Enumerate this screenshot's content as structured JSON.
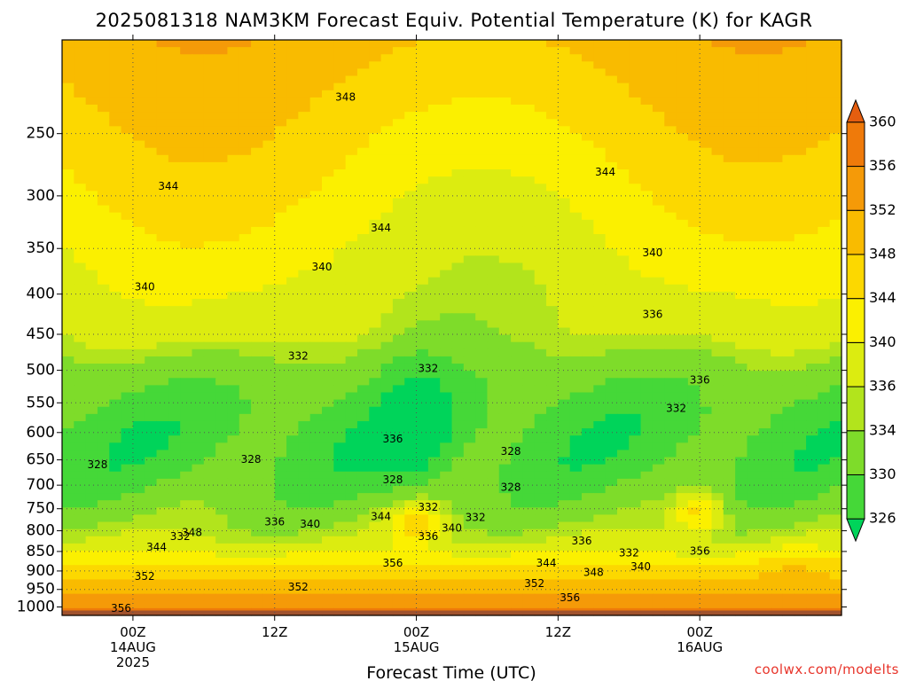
{
  "chart_data": {
    "type": "heatmap",
    "title": "2025081318 NAM3KM Forecast Equiv. Potential Temperature (K) for KAGR",
    "xlabel": "Forecast Time (UTC)",
    "ylabel": "",
    "y_scale": "log",
    "y_reversed": true,
    "ylim": [
      1025,
      190
    ],
    "y_ticks": [
      250,
      300,
      350,
      400,
      450,
      500,
      550,
      600,
      650,
      700,
      750,
      800,
      850,
      900,
      950,
      1000
    ],
    "xlim": [
      "2025-08-13T18",
      "2025-08-16T12"
    ],
    "x_ticks": [
      {
        "time": "2025-08-14T00",
        "lines": [
          "00Z",
          "14AUG",
          "2025"
        ]
      },
      {
        "time": "2025-08-14T12",
        "lines": [
          "12Z"
        ]
      },
      {
        "time": "2025-08-15T00",
        "lines": [
          "00Z",
          "15AUG"
        ]
      },
      {
        "time": "2025-08-15T12",
        "lines": [
          "12Z"
        ]
      },
      {
        "time": "2025-08-16T00",
        "lines": [
          "00Z",
          "16AUG"
        ]
      }
    ],
    "grid": true,
    "colorbar": {
      "units": "K",
      "levels": [
        326,
        330,
        334,
        336,
        340,
        344,
        348,
        352,
        356,
        360
      ],
      "colors": [
        "#00d45a",
        "#45d838",
        "#7edc2a",
        "#b2e41c",
        "#dcec10",
        "#fbf000",
        "#fcd800",
        "#f9bb00",
        "#f59a08",
        "#ef7a0a",
        "#e55e0f"
      ],
      "extend": "both"
    },
    "ground_color": "#a0522d",
    "contour_labels": [
      {
        "time": "2025-08-14T18",
        "p": 225,
        "text": "348"
      },
      {
        "time": "2025-08-15T16",
        "p": 280,
        "text": "344"
      },
      {
        "time": "2025-08-14T03",
        "p": 292,
        "text": "344"
      },
      {
        "time": "2025-08-14T21",
        "p": 330,
        "text": "344"
      },
      {
        "time": "2025-08-14T16",
        "p": 370,
        "text": "340"
      },
      {
        "time": "2025-08-15T20",
        "p": 355,
        "text": "340"
      },
      {
        "time": "2025-08-14T01",
        "p": 392,
        "text": "340"
      },
      {
        "time": "2025-08-15T20",
        "p": 425,
        "text": "336"
      },
      {
        "time": "2025-08-14T14",
        "p": 480,
        "text": "332"
      },
      {
        "time": "2025-08-15T01",
        "p": 498,
        "text": "332"
      },
      {
        "time": "2025-08-16T00",
        "p": 515,
        "text": "336"
      },
      {
        "time": "2025-08-15T22",
        "p": 560,
        "text": "332"
      },
      {
        "time": "2025-08-14T22",
        "p": 612,
        "text": "336"
      },
      {
        "time": "2025-08-15T08",
        "p": 635,
        "text": "328"
      },
      {
        "time": "2025-08-13T21",
        "p": 660,
        "text": "328"
      },
      {
        "time": "2025-08-14T10",
        "p": 650,
        "text": "328"
      },
      {
        "time": "2025-08-14T22",
        "p": 690,
        "text": "328"
      },
      {
        "time": "2025-08-15T08",
        "p": 705,
        "text": "328"
      },
      {
        "time": "2025-08-15T01",
        "p": 748,
        "text": "332"
      },
      {
        "time": "2025-08-15T05",
        "p": 770,
        "text": "332"
      },
      {
        "time": "2025-08-14T21",
        "p": 768,
        "text": "344"
      },
      {
        "time": "2025-08-14T12",
        "p": 780,
        "text": "336"
      },
      {
        "time": "2025-08-14T15",
        "p": 785,
        "text": "340"
      },
      {
        "time": "2025-08-14T05",
        "p": 805,
        "text": "348"
      },
      {
        "time": "2025-08-14T04",
        "p": 815,
        "text": "332"
      },
      {
        "time": "2025-08-15T03",
        "p": 795,
        "text": "340"
      },
      {
        "time": "2025-08-15T01",
        "p": 815,
        "text": "336"
      },
      {
        "time": "2025-08-15T14",
        "p": 825,
        "text": "336"
      },
      {
        "time": "2025-08-14T02",
        "p": 840,
        "text": "344"
      },
      {
        "time": "2025-08-15T18",
        "p": 855,
        "text": "332"
      },
      {
        "time": "2025-08-16T00",
        "p": 850,
        "text": "356"
      },
      {
        "time": "2025-08-14T22",
        "p": 880,
        "text": "356"
      },
      {
        "time": "2025-08-15T11",
        "p": 880,
        "text": "344"
      },
      {
        "time": "2025-08-15T19",
        "p": 890,
        "text": "340"
      },
      {
        "time": "2025-08-15T15",
        "p": 905,
        "text": "348"
      },
      {
        "time": "2025-08-14T01",
        "p": 915,
        "text": "352"
      },
      {
        "time": "2025-08-14T14",
        "p": 945,
        "text": "352"
      },
      {
        "time": "2025-08-15T10",
        "p": 935,
        "text": "352"
      },
      {
        "time": "2025-08-15T13",
        "p": 975,
        "text": "356"
      },
      {
        "time": "2025-08-13T23",
        "p": 1005,
        "text": "356"
      }
    ],
    "credit": "coolwx.com/modelts"
  }
}
